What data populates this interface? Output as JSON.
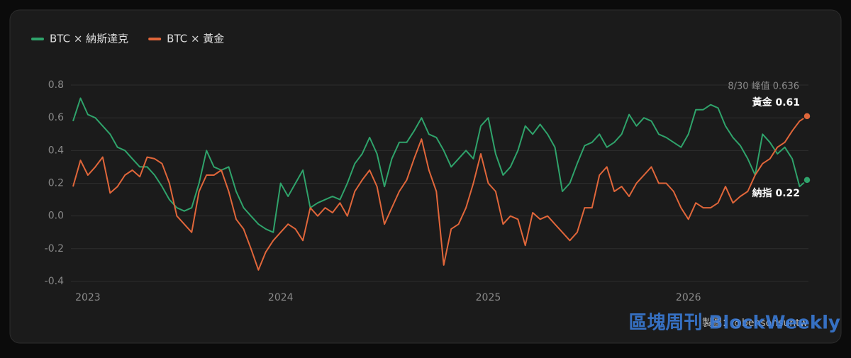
{
  "chart_data": {
    "type": "line",
    "legend": "top-left",
    "grid": true,
    "categories": [
      null,
      null,
      "2023",
      null,
      null,
      null,
      null,
      null,
      null,
      null,
      null,
      null,
      null,
      null,
      null,
      null,
      null,
      null,
      null,
      null,
      null,
      null,
      null,
      null,
      null,
      null,
      null,
      null,
      "2024",
      null,
      null,
      null,
      null,
      null,
      null,
      null,
      null,
      null,
      null,
      null,
      null,
      null,
      null,
      null,
      null,
      null,
      null,
      null,
      null,
      null,
      null,
      null,
      null,
      null,
      null,
      null,
      "2025",
      null,
      null,
      null,
      null,
      null,
      null,
      null,
      null,
      null,
      null,
      null,
      null,
      null,
      null,
      null,
      null,
      null,
      null,
      null,
      null,
      null,
      null,
      null,
      null,
      null,
      null,
      "2026",
      null,
      null,
      null,
      null,
      null,
      null,
      null,
      null,
      null,
      null,
      null,
      null,
      null,
      null,
      null,
      null
    ],
    "series": [
      {
        "name": "BTC × 納斯達克",
        "color": "#2fa36b",
        "values": [
          0.58,
          0.72,
          0.62,
          0.6,
          0.55,
          0.5,
          0.42,
          0.4,
          0.35,
          0.3,
          0.3,
          0.25,
          0.18,
          0.1,
          0.05,
          0.03,
          0.05,
          0.2,
          0.4,
          0.3,
          0.28,
          0.3,
          0.15,
          0.05,
          0,
          -0.05,
          -0.08,
          -0.1,
          0.2,
          0.12,
          0.2,
          0.28,
          0.05,
          0.08,
          0.1,
          0.12,
          0.1,
          0.2,
          0.32,
          0.38,
          0.48,
          0.38,
          0.18,
          0.35,
          0.45,
          0.45,
          0.52,
          0.6,
          0.5,
          0.48,
          0.4,
          0.3,
          0.35,
          0.4,
          0.35,
          0.55,
          0.6,
          0.38,
          0.25,
          0.3,
          0.4,
          0.55,
          0.5,
          0.56,
          0.5,
          0.42,
          0.15,
          0.2,
          0.32,
          0.43,
          0.45,
          0.5,
          0.42,
          0.45,
          0.5,
          0.62,
          0.55,
          0.6,
          0.58,
          0.5,
          0.48,
          0.45,
          0.42,
          0.5,
          0.65,
          0.65,
          0.68,
          0.66,
          0.55,
          0.48,
          0.43,
          0.35,
          0.25,
          0.5,
          0.45,
          0.38,
          0.42,
          0.35,
          0.18,
          0.22
        ]
      },
      {
        "name": "BTC × 黃金",
        "color": "#e0663a",
        "values": [
          0.18,
          0.34,
          0.25,
          0.3,
          0.36,
          0.14,
          0.18,
          0.25,
          0.28,
          0.24,
          0.36,
          0.35,
          0.32,
          0.2,
          0,
          -0.05,
          -0.1,
          0.15,
          0.25,
          0.25,
          0.28,
          0.15,
          -0.02,
          -0.08,
          -0.2,
          -0.33,
          -0.22,
          -0.15,
          -0.1,
          -0.05,
          -0.08,
          -0.15,
          0.05,
          0,
          0.05,
          0.02,
          0.08,
          0,
          0.15,
          0.22,
          0.28,
          0.18,
          -0.05,
          0.05,
          0.15,
          0.22,
          0.35,
          0.47,
          0.28,
          0.15,
          -0.3,
          -0.08,
          -0.05,
          0.05,
          0.2,
          0.38,
          0.2,
          0.15,
          -0.05,
          0,
          -0.02,
          -0.18,
          0.02,
          -0.02,
          0,
          -0.05,
          -0.1,
          -0.15,
          -0.1,
          0.05,
          0.05,
          0.25,
          0.3,
          0.15,
          0.18,
          0.12,
          0.2,
          0.25,
          0.3,
          0.2,
          0.2,
          0.15,
          0.05,
          -0.02,
          0.08,
          0.05,
          0.05,
          0.08,
          0.18,
          0.08,
          0.12,
          0.15,
          0.25,
          0.32,
          0.35,
          0.42,
          0.45,
          0.52,
          0.58,
          0.61
        ]
      }
    ],
    "ylim": [
      -0.45,
      0.85
    ],
    "yticks": [
      -0.4,
      -0.2,
      {
        "value": 0,
        "label": "0.0"
      },
      0.2,
      0.4,
      0.6,
      0.8
    ],
    "annotations": {
      "peak": "8/30 峰值 0.636",
      "gold": "黃金 0.61",
      "nasdaq": "納指 0.22"
    },
    "credit": "製圖：@bensonsuntw",
    "logo": "區塊周刊 BlockWeekly"
  }
}
